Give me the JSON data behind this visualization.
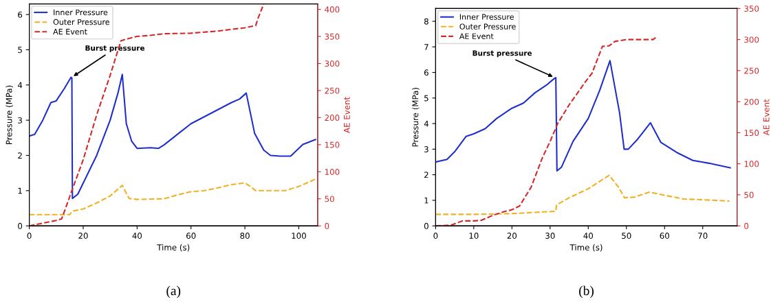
{
  "chart_data": [
    {
      "type": "line",
      "xlabel": "Time (s)",
      "ylabel": "Pressure (MPa)",
      "y2label": "AE Event",
      "xlim": [
        0,
        107
      ],
      "xticks": [
        0,
        20,
        40,
        60,
        80,
        100
      ],
      "ylim": [
        0,
        6.3
      ],
      "yticks": [
        0,
        1,
        2,
        3,
        4,
        5,
        6
      ],
      "y2lim": [
        0,
        410
      ],
      "y2ticks": [
        0,
        50,
        100,
        150,
        200,
        250,
        300,
        350,
        400
      ],
      "legend": "top left",
      "grid": false,
      "annotations": [
        {
          "text": "Burst pressure",
          "x": 15.8,
          "y": 4.22
        },
        "(a)"
      ],
      "series": [
        {
          "name": "Inner Pressure",
          "color": "#1f2fcc",
          "line_style": "solid",
          "x": [
            0,
            2,
            5,
            8,
            10,
            13,
            15.5,
            15.8,
            16,
            18,
            25,
            30,
            33,
            34.5,
            36,
            38,
            40,
            45,
            48,
            50,
            55,
            60,
            65,
            70,
            75,
            78,
            80.5,
            83.6,
            87,
            89.5,
            93,
            97,
            101.5,
            106.2
          ],
          "values": [
            2.55,
            2.6,
            3.0,
            3.5,
            3.55,
            3.9,
            4.22,
            4.2,
            0.78,
            0.9,
            2.0,
            3.0,
            3.8,
            4.3,
            2.9,
            2.4,
            2.2,
            2.22,
            2.2,
            2.3,
            2.6,
            2.9,
            3.1,
            3.3,
            3.5,
            3.6,
            3.77,
            2.63,
            2.15,
            2.0,
            1.98,
            1.98,
            2.31,
            2.45
          ]
        },
        {
          "name": "Outer Pressure",
          "color": "#f0b020",
          "line_style": "dashed",
          "x": [
            0,
            15,
            16,
            20,
            25,
            30,
            34.5,
            37,
            40,
            50,
            55,
            60,
            65,
            70,
            75,
            80,
            82,
            84,
            95,
            100,
            106
          ],
          "values": [
            0.32,
            0.32,
            0.42,
            0.48,
            0.65,
            0.85,
            1.15,
            0.78,
            0.75,
            0.77,
            0.88,
            0.97,
            1.0,
            1.08,
            1.17,
            1.22,
            1.12,
            1.0,
            1.0,
            1.12,
            1.32
          ]
        },
        {
          "name": "AE Event",
          "color": "#d62728",
          "line_style": "dashed",
          "axis": "y2",
          "x": [
            0,
            5,
            10,
            12,
            14,
            16,
            20,
            25,
            30,
            34,
            36,
            40,
            45,
            50,
            60,
            70,
            80,
            84,
            85,
            87
          ],
          "values": [
            0,
            5,
            10,
            13,
            40,
            68,
            122,
            205,
            278,
            342,
            345,
            350,
            352,
            355,
            356,
            360,
            366,
            370,
            385,
            410
          ]
        }
      ]
    },
    {
      "type": "line",
      "xlabel": "Time (s)",
      "ylabel": "Pressure (MPa)",
      "y2label": "AE Event",
      "xlim": [
        0,
        79
      ],
      "xticks": [
        0,
        10,
        20,
        30,
        40,
        50,
        60,
        70
      ],
      "ylim": [
        0,
        8.5
      ],
      "yticks": [
        0,
        1,
        2,
        3,
        4,
        5,
        6,
        7,
        8
      ],
      "y2lim": [
        0,
        350
      ],
      "y2ticks": [
        0,
        50,
        100,
        150,
        200,
        250,
        300,
        350
      ],
      "legend": "top left",
      "grid": false,
      "annotations": [
        {
          "text": "Burst pressure",
          "x": 31.2,
          "y": 5.8
        },
        "(b)"
      ],
      "series": [
        {
          "name": "Inner Pressure",
          "color": "#1f2fcc",
          "line_style": "solid",
          "x": [
            0,
            3,
            5,
            8,
            10,
            13,
            16,
            20,
            23,
            26,
            29,
            31,
            31.5,
            31.8,
            33,
            36,
            40,
            43,
            45.7,
            47,
            48.2,
            49.4,
            50.5,
            53,
            56.3,
            59,
            63.2,
            67.4,
            71.6,
            77.2
          ],
          "values": [
            2.5,
            2.6,
            2.9,
            3.5,
            3.6,
            3.8,
            4.2,
            4.6,
            4.8,
            5.2,
            5.5,
            5.75,
            5.8,
            2.15,
            2.3,
            3.3,
            4.2,
            5.3,
            6.46,
            5.4,
            4.43,
            3.0,
            3.0,
            3.4,
            4.03,
            3.27,
            2.87,
            2.56,
            2.45,
            2.27
          ]
        },
        {
          "name": "Outer Pressure",
          "color": "#f0b020",
          "line_style": "dashed",
          "x": [
            0,
            10,
            20,
            25,
            31.5,
            31.7,
            35,
            40,
            45.5,
            48,
            49.5,
            52,
            56,
            60,
            65,
            70,
            77
          ],
          "values": [
            0.45,
            0.45,
            0.48,
            0.52,
            0.57,
            0.82,
            1.1,
            1.45,
            1.98,
            1.5,
            1.1,
            1.12,
            1.32,
            1.2,
            1.05,
            1.02,
            0.97
          ]
        },
        {
          "name": "AE Event",
          "color": "#d62728",
          "line_style": "dashed",
          "axis": "y2",
          "x": [
            0,
            4,
            7,
            10,
            12,
            15,
            18,
            20,
            22,
            25,
            28,
            30,
            32,
            35,
            38,
            39,
            41,
            43.7,
            45.5,
            47,
            50,
            57,
            58
          ],
          "values": [
            0,
            1,
            8,
            8,
            9,
            17,
            23,
            26,
            32,
            62,
            110,
            136,
            165,
            195,
            221,
            230,
            246,
            289,
            290,
            297,
            300,
            300,
            305
          ]
        }
      ]
    }
  ]
}
